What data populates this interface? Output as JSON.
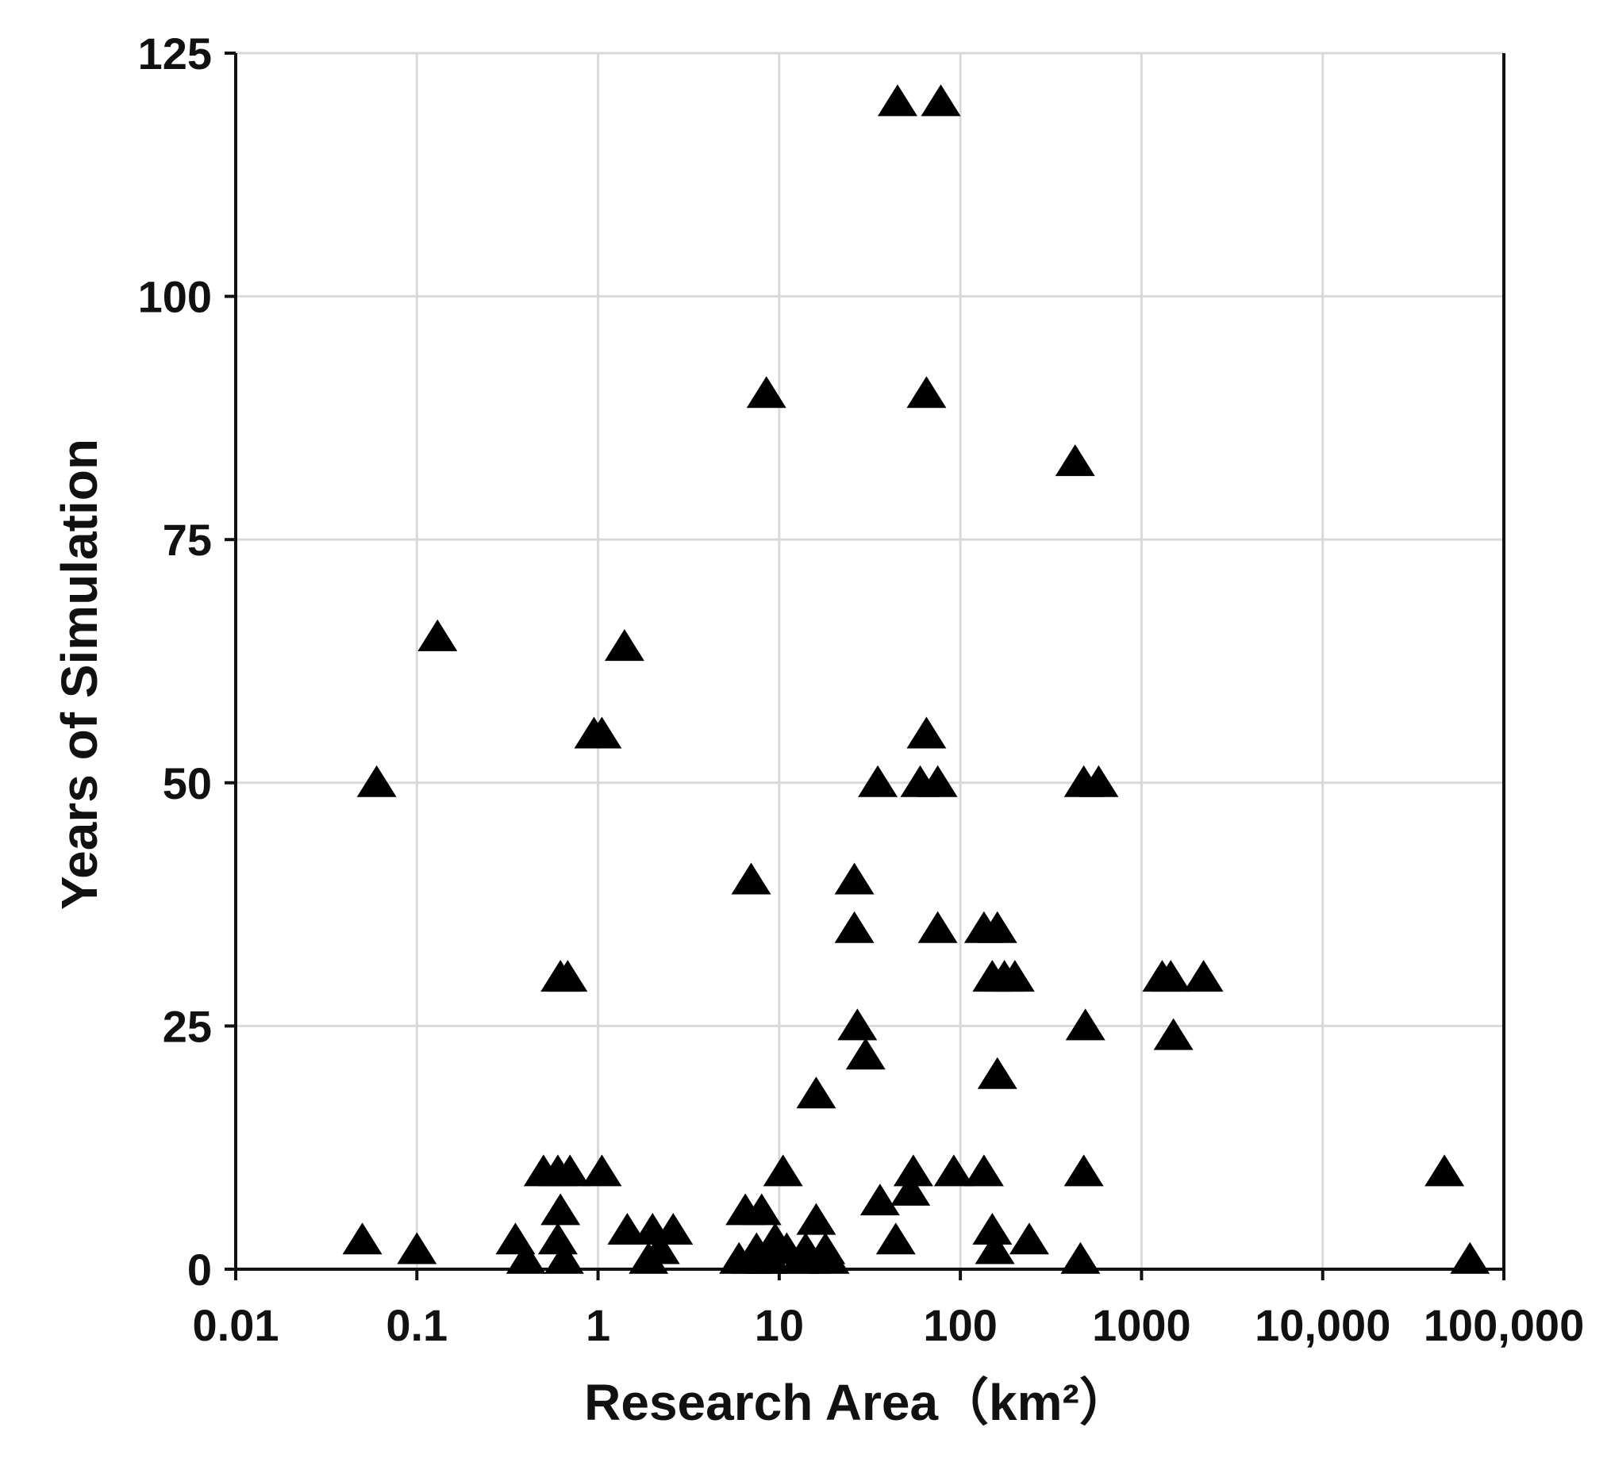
{
  "chart_data": {
    "type": "scatter",
    "xlabel": "Research Area（km²）",
    "ylabel": "Years of Simulation",
    "xscale": "log",
    "xlim": [
      0.01,
      100000
    ],
    "ylim": [
      0,
      125
    ],
    "xticks": [
      {
        "value": 0.01,
        "label": "0.01"
      },
      {
        "value": 0.1,
        "label": "0.1"
      },
      {
        "value": 1,
        "label": "1"
      },
      {
        "value": 10,
        "label": "10"
      },
      {
        "value": 100,
        "label": "100"
      },
      {
        "value": 1000,
        "label": "1000"
      },
      {
        "value": 10000,
        "label": "10,000"
      },
      {
        "value": 100000,
        "label": "100,000"
      }
    ],
    "yticks": [
      {
        "value": 0,
        "label": "0"
      },
      {
        "value": 25,
        "label": "25"
      },
      {
        "value": 50,
        "label": "50"
      },
      {
        "value": 75,
        "label": "75"
      },
      {
        "value": 100,
        "label": "100"
      },
      {
        "value": 125,
        "label": "125"
      }
    ],
    "grid": true,
    "marker": "triangle",
    "marker_color": "#000000",
    "points": [
      {
        "x": 45,
        "y": 120
      },
      {
        "x": 78,
        "y": 120
      },
      {
        "x": 8.5,
        "y": 90
      },
      {
        "x": 65,
        "y": 90
      },
      {
        "x": 430,
        "y": 83
      },
      {
        "x": 0.13,
        "y": 65
      },
      {
        "x": 1.4,
        "y": 64
      },
      {
        "x": 0.95,
        "y": 55
      },
      {
        "x": 1.05,
        "y": 55
      },
      {
        "x": 65,
        "y": 55
      },
      {
        "x": 0.06,
        "y": 50
      },
      {
        "x": 35,
        "y": 50
      },
      {
        "x": 60,
        "y": 50
      },
      {
        "x": 75,
        "y": 50
      },
      {
        "x": 480,
        "y": 50
      },
      {
        "x": 580,
        "y": 50
      },
      {
        "x": 7,
        "y": 40
      },
      {
        "x": 26,
        "y": 40
      },
      {
        "x": 26,
        "y": 35
      },
      {
        "x": 75,
        "y": 35
      },
      {
        "x": 135,
        "y": 35
      },
      {
        "x": 160,
        "y": 35
      },
      {
        "x": 0.62,
        "y": 30
      },
      {
        "x": 0.68,
        "y": 30
      },
      {
        "x": 150,
        "y": 30
      },
      {
        "x": 175,
        "y": 30
      },
      {
        "x": 200,
        "y": 30
      },
      {
        "x": 1300,
        "y": 30
      },
      {
        "x": 1450,
        "y": 30
      },
      {
        "x": 2200,
        "y": 30
      },
      {
        "x": 27,
        "y": 25
      },
      {
        "x": 490,
        "y": 25
      },
      {
        "x": 1500,
        "y": 24
      },
      {
        "x": 30,
        "y": 22
      },
      {
        "x": 160,
        "y": 20
      },
      {
        "x": 16,
        "y": 18
      },
      {
        "x": 0.5,
        "y": 10
      },
      {
        "x": 0.6,
        "y": 10
      },
      {
        "x": 0.7,
        "y": 10
      },
      {
        "x": 1.05,
        "y": 10
      },
      {
        "x": 10.5,
        "y": 10
      },
      {
        "x": 55,
        "y": 10
      },
      {
        "x": 92,
        "y": 10
      },
      {
        "x": 135,
        "y": 10
      },
      {
        "x": 480,
        "y": 10
      },
      {
        "x": 47000,
        "y": 10
      },
      {
        "x": 53,
        "y": 8
      },
      {
        "x": 36,
        "y": 7
      },
      {
        "x": 0.62,
        "y": 6
      },
      {
        "x": 6.5,
        "y": 6
      },
      {
        "x": 8,
        "y": 6
      },
      {
        "x": 16,
        "y": 5
      },
      {
        "x": 1.45,
        "y": 4
      },
      {
        "x": 2,
        "y": 4
      },
      {
        "x": 2.6,
        "y": 4
      },
      {
        "x": 150,
        "y": 4
      },
      {
        "x": 0.05,
        "y": 3
      },
      {
        "x": 0.35,
        "y": 3
      },
      {
        "x": 0.6,
        "y": 3
      },
      {
        "x": 9.5,
        "y": 3
      },
      {
        "x": 44,
        "y": 3
      },
      {
        "x": 240,
        "y": 3
      },
      {
        "x": 0.1,
        "y": 2
      },
      {
        "x": 2.2,
        "y": 2
      },
      {
        "x": 7.5,
        "y": 2
      },
      {
        "x": 11,
        "y": 2
      },
      {
        "x": 14,
        "y": 2
      },
      {
        "x": 18,
        "y": 2
      },
      {
        "x": 155,
        "y": 2
      },
      {
        "x": 0.4,
        "y": 1
      },
      {
        "x": 0.65,
        "y": 1
      },
      {
        "x": 1.9,
        "y": 1
      },
      {
        "x": 6,
        "y": 1
      },
      {
        "x": 7,
        "y": 1
      },
      {
        "x": 8.5,
        "y": 1
      },
      {
        "x": 9,
        "y": 1
      },
      {
        "x": 13,
        "y": 1
      },
      {
        "x": 15,
        "y": 1
      },
      {
        "x": 19,
        "y": 1
      },
      {
        "x": 460,
        "y": 1
      },
      {
        "x": 65000,
        "y": 1
      }
    ]
  }
}
